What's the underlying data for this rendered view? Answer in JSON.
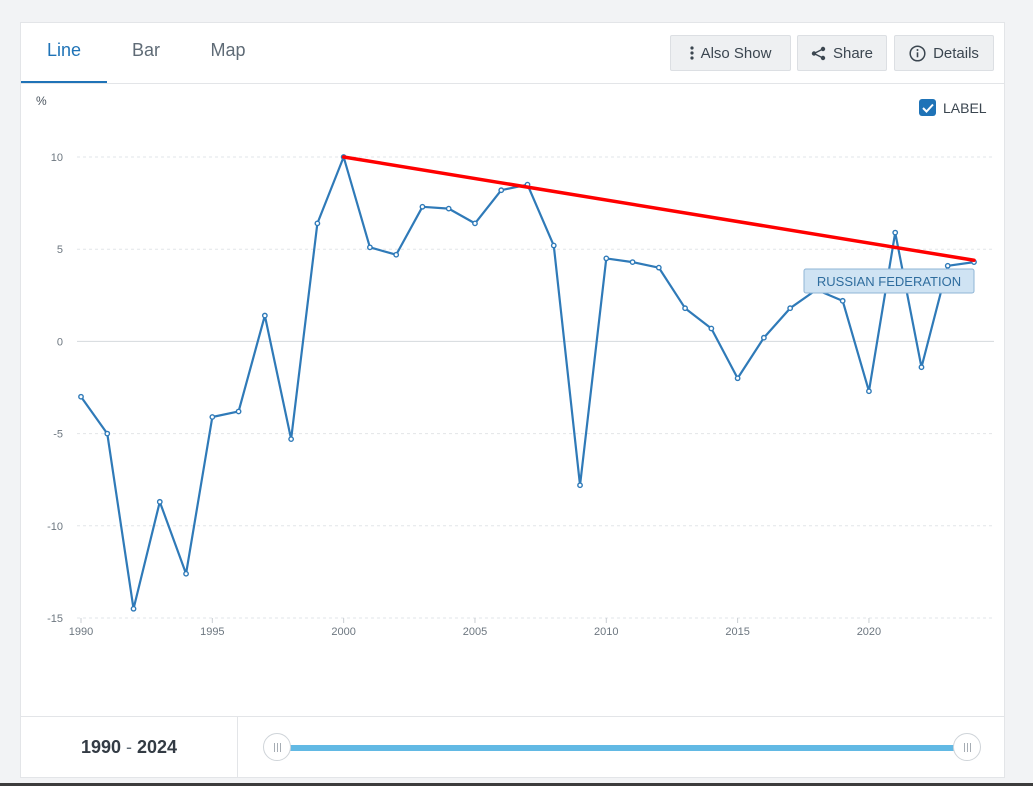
{
  "tabs": [
    {
      "label": "Line",
      "active": true
    },
    {
      "label": "Bar",
      "active": false
    },
    {
      "label": "Map",
      "active": false
    }
  ],
  "toolbar": {
    "also_show_label": "Also Show",
    "share_label": "Share",
    "details_label": "Details"
  },
  "label_toggle": {
    "label": "LABEL",
    "checked": true
  },
  "range": {
    "start": "1990",
    "separator": "-",
    "end": "2024"
  },
  "colors": {
    "accent": "#1f73b7",
    "series": "#2f7ab8",
    "trendline": "#ff0000",
    "slider": "#62b9e4"
  },
  "chart_data": {
    "type": "line",
    "ylabel": "%",
    "ylim": [
      -15,
      10
    ],
    "yticks": [
      10,
      5,
      0,
      -5,
      -10,
      -15
    ],
    "xlim": [
      1990,
      2024
    ],
    "xticks": [
      1990,
      1995,
      2000,
      2005,
      2010,
      2015,
      2020
    ],
    "grid": true,
    "series": [
      {
        "name": "RUSSIAN FEDERATION",
        "x": [
          1990,
          1991,
          1992,
          1993,
          1994,
          1995,
          1996,
          1997,
          1998,
          1999,
          2000,
          2001,
          2002,
          2003,
          2004,
          2005,
          2006,
          2007,
          2008,
          2009,
          2010,
          2011,
          2012,
          2013,
          2014,
          2015,
          2016,
          2017,
          2018,
          2019,
          2020,
          2021,
          2022,
          2023,
          2024
        ],
        "values": [
          -3.0,
          -5.0,
          -14.5,
          -8.7,
          -12.6,
          -4.1,
          -3.8,
          1.4,
          -5.3,
          6.4,
          10.0,
          5.1,
          4.7,
          7.3,
          7.2,
          6.4,
          8.2,
          8.5,
          5.2,
          -7.8,
          4.5,
          4.3,
          4.0,
          1.8,
          0.7,
          -2.0,
          0.2,
          1.8,
          2.8,
          2.2,
          -2.7,
          5.9,
          -1.4,
          4.1,
          4.3
        ]
      }
    ],
    "trendline": {
      "x": [
        2000,
        2024
      ],
      "y": [
        10.0,
        4.4
      ]
    }
  }
}
